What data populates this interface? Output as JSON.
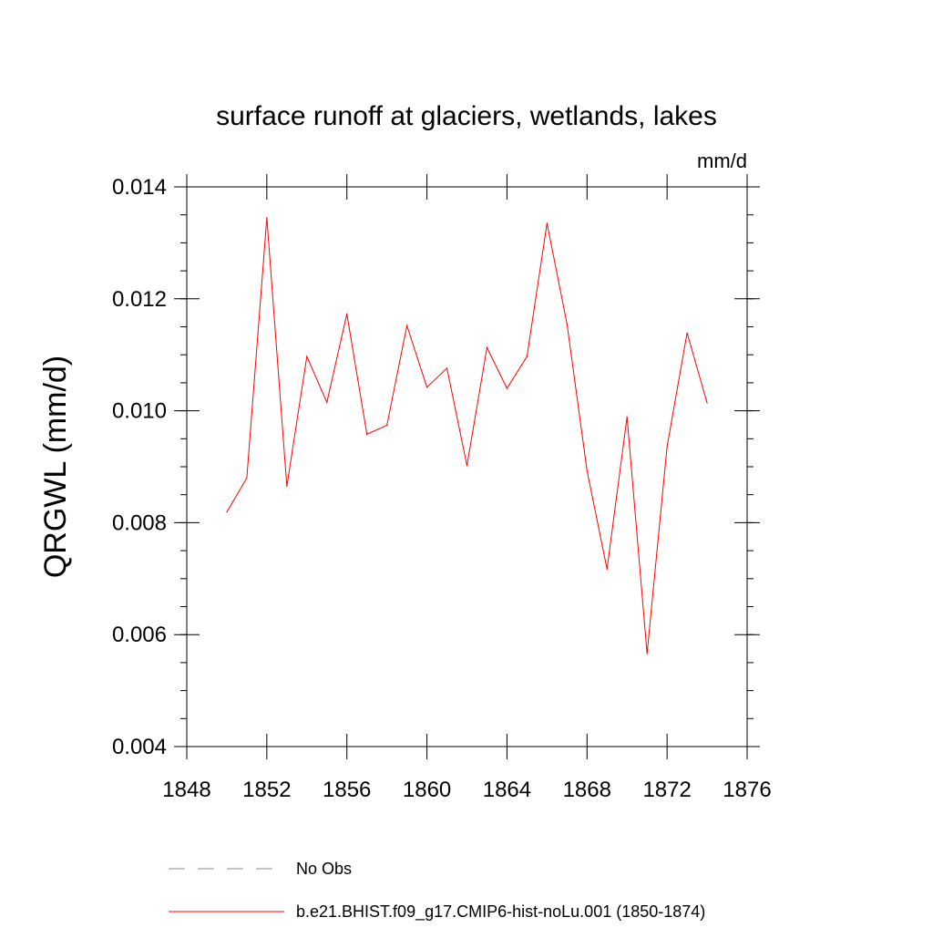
{
  "chart_data": {
    "type": "line",
    "title": "surface runoff at glaciers, wetlands, lakes",
    "units": "mm/d",
    "xlabel": "",
    "ylabel": "QRGWL  (mm/d)",
    "xlim": [
      1848,
      1876
    ],
    "ylim": [
      0.004,
      0.014
    ],
    "x_ticks": [
      1848,
      1852,
      1856,
      1860,
      1864,
      1868,
      1872,
      1876
    ],
    "x_tick_labels": [
      "1848",
      "1852",
      "1856",
      "1860",
      "1864",
      "1868",
      "1872",
      "1876"
    ],
    "y_ticks": [
      0.004,
      0.006,
      0.008,
      0.01,
      0.012,
      0.014
    ],
    "y_tick_labels": [
      "0.004",
      "0.006",
      "0.008",
      "0.010",
      "0.012",
      "0.014"
    ],
    "grid": false,
    "legend_position": "bottom",
    "series": [
      {
        "name": "No Obs",
        "color": "#8080c0",
        "dash": "dashed",
        "x": [],
        "values": []
      },
      {
        "name": "b.e21.BHIST.f09_g17.CMIP6-hist-noLu.001 (1850-1874)",
        "color": "#ff0000",
        "dash": "solid",
        "x": [
          1850,
          1851,
          1852,
          1853,
          1854,
          1855,
          1856,
          1857,
          1858,
          1859,
          1860,
          1861,
          1862,
          1863,
          1864,
          1865,
          1866,
          1867,
          1868,
          1869,
          1870,
          1871,
          1872,
          1873,
          1874
        ],
        "values": [
          0.00819,
          0.0088,
          0.01345,
          0.00865,
          0.01097,
          0.01015,
          0.01173,
          0.00958,
          0.00974,
          0.01152,
          0.01042,
          0.01076,
          0.00902,
          0.01113,
          0.0104,
          0.01097,
          0.01335,
          0.01155,
          0.00893,
          0.00717,
          0.00989,
          0.00566,
          0.00936,
          0.01139,
          0.01014
        ]
      }
    ]
  }
}
